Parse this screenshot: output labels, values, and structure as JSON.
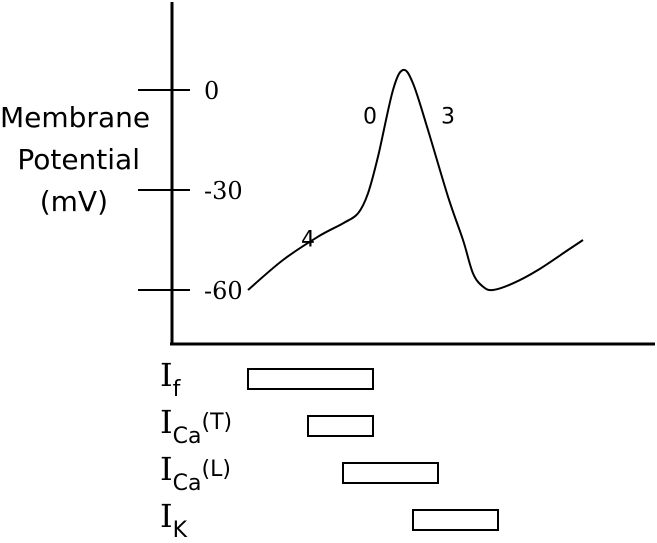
{
  "chart_data": {
    "type": "line",
    "ylabel": [
      "Membrane",
      "Potential",
      "(mV)"
    ],
    "y_ticks": [
      "0",
      "-30",
      "-60"
    ],
    "ylim": [
      -80,
      25
    ],
    "series": [
      {
        "points": [
          [
            0,
            -60
          ],
          [
            35,
            -51
          ],
          [
            70,
            -44
          ],
          [
            95,
            -40
          ],
          [
            110,
            -37
          ],
          [
            120,
            -31
          ],
          [
            130,
            -20
          ],
          [
            145,
            0
          ],
          [
            155,
            6
          ],
          [
            165,
            2
          ],
          [
            180,
            -12
          ],
          [
            200,
            -32
          ],
          [
            215,
            -45
          ],
          [
            225,
            -55
          ],
          [
            235,
            -59
          ],
          [
            245,
            -60
          ],
          [
            265,
            -58
          ],
          [
            290,
            -54
          ],
          [
            320,
            -48
          ],
          [
            335,
            -45
          ]
        ]
      }
    ],
    "phase_labels": [
      {
        "text": "4",
        "x": 60,
        "y": -47
      },
      {
        "text": "0",
        "x": 122,
        "y": -10
      },
      {
        "text": "3",
        "x": 200,
        "y": -10
      }
    ],
    "currents": [
      {
        "base": "I",
        "sub": "f",
        "suffix": "",
        "start": 0,
        "end": 125
      },
      {
        "base": "I",
        "sub": "Ca",
        "suffix": "(T)",
        "start": 60,
        "end": 125
      },
      {
        "base": "I",
        "sub": "Ca",
        "suffix": "(L)",
        "start": 95,
        "end": 190
      },
      {
        "base": "I",
        "sub": "K",
        "suffix": "",
        "start": 165,
        "end": 250
      }
    ]
  }
}
